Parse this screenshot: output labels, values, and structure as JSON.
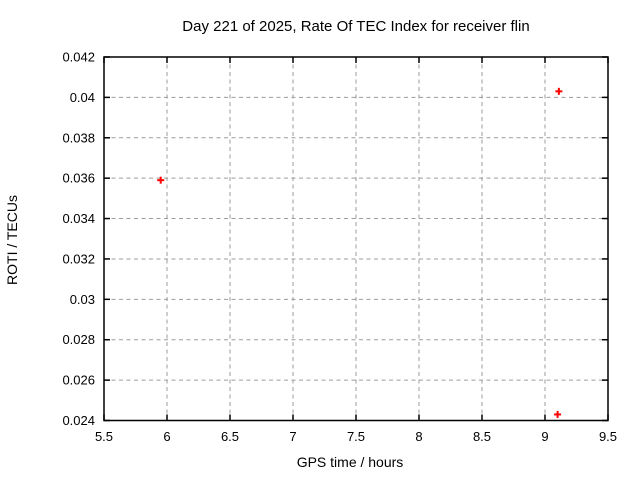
{
  "chart_data": {
    "type": "scatter",
    "title": "Day 221 of 2025, Rate Of TEC Index for receiver flin",
    "xlabel": "GPS time / hours",
    "ylabel": "ROTI / TECUs",
    "xlim": [
      5.5,
      9.5
    ],
    "ylim": [
      0.024,
      0.042
    ],
    "xticks": {
      "values": [
        5.5,
        6,
        6.5,
        7,
        7.5,
        8,
        8.5,
        9,
        9.5
      ],
      "labels": [
        "5.5",
        "6",
        "6.5",
        "7",
        "7.5",
        "8",
        "8.5",
        "9",
        "9.5"
      ]
    },
    "yticks": {
      "values": [
        0.024,
        0.026,
        0.028,
        0.03,
        0.032,
        0.034,
        0.036,
        0.038,
        0.04,
        0.042
      ],
      "labels": [
        "0.024",
        "0.026",
        "0.028",
        "0.03",
        "0.032",
        "0.034",
        "0.036",
        "0.038",
        "0.04",
        "0.042"
      ]
    },
    "grid": true,
    "legend_position": "none",
    "marker": {
      "shape": "plus",
      "size": 7,
      "color": "#ff0000"
    },
    "points": [
      {
        "x": 5.95,
        "y": 0.0359
      },
      {
        "x": 9.11,
        "y": 0.0403
      },
      {
        "x": 9.1,
        "y": 0.0243
      }
    ]
  },
  "colors": {
    "background": "#ffffff",
    "grid": "#9c9c9c",
    "axis": "#000000",
    "text": "#000000",
    "marker": "#ff0000"
  }
}
